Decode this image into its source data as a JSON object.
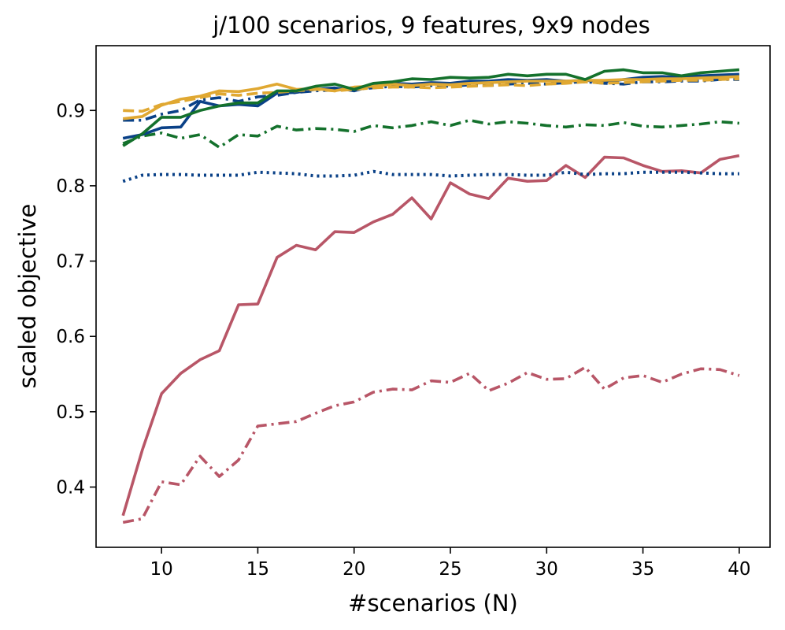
{
  "chart_data": {
    "type": "line",
    "title": "j/100 scenarios, 9 features, 9x9 nodes",
    "xlabel": "#scenarios (N)",
    "ylabel": "scaled objective",
    "xlim": [
      6.6,
      41.6
    ],
    "ylim": [
      0.32,
      0.986
    ],
    "xticks": [
      10,
      15,
      20,
      25,
      30,
      35,
      40
    ],
    "xtick_labels": [
      "10",
      "15",
      "20",
      "25",
      "30",
      "35",
      "40"
    ],
    "yticks": [
      0.4,
      0.5,
      0.6,
      0.7,
      0.8,
      0.9
    ],
    "ytick_labels": [
      "0.4",
      "0.5",
      "0.6",
      "0.7",
      "0.8",
      "0.9"
    ],
    "grid": false,
    "legend": false,
    "x": [
      8,
      9,
      10,
      11,
      12,
      13,
      14,
      15,
      16,
      17,
      18,
      19,
      20,
      21,
      22,
      23,
      24,
      25,
      26,
      27,
      28,
      29,
      30,
      31,
      32,
      33,
      34,
      35,
      36,
      37,
      38,
      39,
      40
    ],
    "series": [
      {
        "color": "#b85667",
        "style": "solid",
        "values": [
          0.362,
          0.449,
          0.524,
          0.551,
          0.569,
          0.581,
          0.642,
          0.643,
          0.705,
          0.721,
          0.715,
          0.739,
          0.738,
          0.752,
          0.762,
          0.784,
          0.756,
          0.804,
          0.789,
          0.783,
          0.81,
          0.806,
          0.807,
          0.827,
          0.811,
          0.838,
          0.837,
          0.827,
          0.819,
          0.82,
          0.817,
          0.835,
          0.84
        ]
      },
      {
        "color": "#b85667",
        "style": "dashdot",
        "values": [
          0.353,
          0.358,
          0.407,
          0.403,
          0.441,
          0.414,
          0.436,
          0.481,
          0.484,
          0.487,
          0.498,
          0.508,
          0.513,
          0.526,
          0.53,
          0.529,
          0.541,
          0.539,
          0.551,
          0.528,
          0.538,
          0.552,
          0.543,
          0.544,
          0.559,
          0.53,
          0.545,
          0.548,
          0.539,
          0.55,
          0.557,
          0.556,
          0.548
        ]
      },
      {
        "color": "#0a4187",
        "style": "dotted",
        "values": [
          0.806,
          0.814,
          0.815,
          0.815,
          0.814,
          0.814,
          0.814,
          0.818,
          0.817,
          0.816,
          0.813,
          0.813,
          0.814,
          0.819,
          0.815,
          0.815,
          0.815,
          0.813,
          0.814,
          0.815,
          0.815,
          0.814,
          0.814,
          0.818,
          0.815,
          0.816,
          0.816,
          0.818,
          0.818,
          0.818,
          0.817,
          0.816,
          0.816
        ]
      },
      {
        "color": "#14712c",
        "style": "dashdot",
        "values": [
          0.856,
          0.866,
          0.87,
          0.863,
          0.868,
          0.851,
          0.868,
          0.866,
          0.879,
          0.874,
          0.876,
          0.875,
          0.872,
          0.88,
          0.877,
          0.88,
          0.885,
          0.88,
          0.887,
          0.882,
          0.885,
          0.883,
          0.88,
          0.878,
          0.881,
          0.88,
          0.884,
          0.879,
          0.878,
          0.88,
          0.882,
          0.885,
          0.883
        ]
      },
      {
        "color": "#0a4187",
        "style": "solid",
        "values": [
          0.863,
          0.868,
          0.877,
          0.878,
          0.912,
          0.906,
          0.908,
          0.906,
          0.923,
          0.924,
          0.928,
          0.93,
          0.926,
          0.933,
          0.936,
          0.935,
          0.937,
          0.936,
          0.939,
          0.939,
          0.941,
          0.94,
          0.941,
          0.939,
          0.94,
          0.938,
          0.941,
          0.944,
          0.945,
          0.944,
          0.946,
          0.947,
          0.948
        ]
      },
      {
        "color": "#0a4187",
        "style": "dashdot",
        "values": [
          0.887,
          0.887,
          0.895,
          0.9,
          0.914,
          0.917,
          0.912,
          0.918,
          0.92,
          0.924,
          0.926,
          0.927,
          0.928,
          0.93,
          0.932,
          0.931,
          0.933,
          0.932,
          0.934,
          0.933,
          0.935,
          0.936,
          0.935,
          0.937,
          0.938,
          0.936,
          0.935,
          0.938,
          0.938,
          0.939,
          0.939,
          0.941,
          0.941
        ]
      },
      {
        "color": "#e0a832",
        "style": "solid",
        "values": [
          0.889,
          0.892,
          0.907,
          0.915,
          0.919,
          0.926,
          0.925,
          0.929,
          0.935,
          0.928,
          0.929,
          0.926,
          0.931,
          0.932,
          0.935,
          0.933,
          0.935,
          0.934,
          0.936,
          0.937,
          0.938,
          0.939,
          0.939,
          0.939,
          0.94,
          0.94,
          0.941,
          0.941,
          0.942,
          0.942,
          0.943,
          0.944,
          0.945
        ]
      },
      {
        "color": "#e0a832",
        "style": "dashed",
        "values": [
          0.9,
          0.899,
          0.908,
          0.912,
          0.917,
          0.922,
          0.92,
          0.923,
          0.924,
          0.926,
          0.928,
          0.926,
          0.928,
          0.93,
          0.931,
          0.931,
          0.93,
          0.931,
          0.932,
          0.933,
          0.934,
          0.933,
          0.935,
          0.936,
          0.938,
          0.936,
          0.937,
          0.938,
          0.939,
          0.94,
          0.94,
          0.941,
          0.942
        ]
      },
      {
        "color": "#14712c",
        "style": "solid",
        "values": [
          0.853,
          0.869,
          0.891,
          0.891,
          0.9,
          0.906,
          0.91,
          0.91,
          0.926,
          0.926,
          0.932,
          0.935,
          0.928,
          0.936,
          0.938,
          0.942,
          0.941,
          0.944,
          0.943,
          0.944,
          0.948,
          0.946,
          0.948,
          0.948,
          0.941,
          0.952,
          0.954,
          0.95,
          0.95,
          0.946,
          0.95,
          0.952,
          0.954
        ]
      }
    ]
  }
}
